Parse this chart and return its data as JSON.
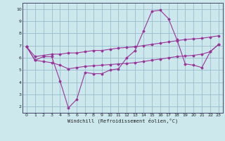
{
  "xlabel": "Windchill (Refroidissement éolien,°C)",
  "xlim": [
    -0.5,
    23.5
  ],
  "ylim": [
    1.5,
    10.5
  ],
  "xticks": [
    0,
    1,
    2,
    3,
    4,
    5,
    6,
    7,
    8,
    9,
    10,
    11,
    12,
    13,
    14,
    15,
    16,
    17,
    18,
    19,
    20,
    21,
    22,
    23
  ],
  "yticks": [
    2,
    3,
    4,
    5,
    6,
    7,
    8,
    9,
    10
  ],
  "bg_color": "#cce8ec",
  "line_color": "#993399",
  "grid_color": "#99bbcc",
  "series": [
    [
      6.9,
      5.8,
      6.1,
      6.1,
      4.1,
      1.9,
      2.6,
      4.8,
      4.7,
      4.7,
      5.0,
      5.1,
      6.0,
      6.6,
      8.2,
      9.8,
      9.9,
      9.2,
      7.5,
      5.5,
      5.4,
      5.2,
      6.5,
      7.1
    ],
    [
      6.9,
      6.1,
      6.2,
      6.3,
      6.3,
      6.4,
      6.4,
      6.5,
      6.6,
      6.6,
      6.7,
      6.8,
      6.85,
      6.9,
      7.0,
      7.1,
      7.2,
      7.3,
      7.4,
      7.5,
      7.55,
      7.6,
      7.7,
      7.8
    ],
    [
      6.9,
      5.8,
      5.7,
      5.6,
      5.4,
      5.1,
      5.2,
      5.3,
      5.35,
      5.4,
      5.45,
      5.5,
      5.55,
      5.6,
      5.7,
      5.8,
      5.9,
      6.0,
      6.1,
      6.15,
      6.2,
      6.3,
      6.5,
      7.1
    ]
  ]
}
